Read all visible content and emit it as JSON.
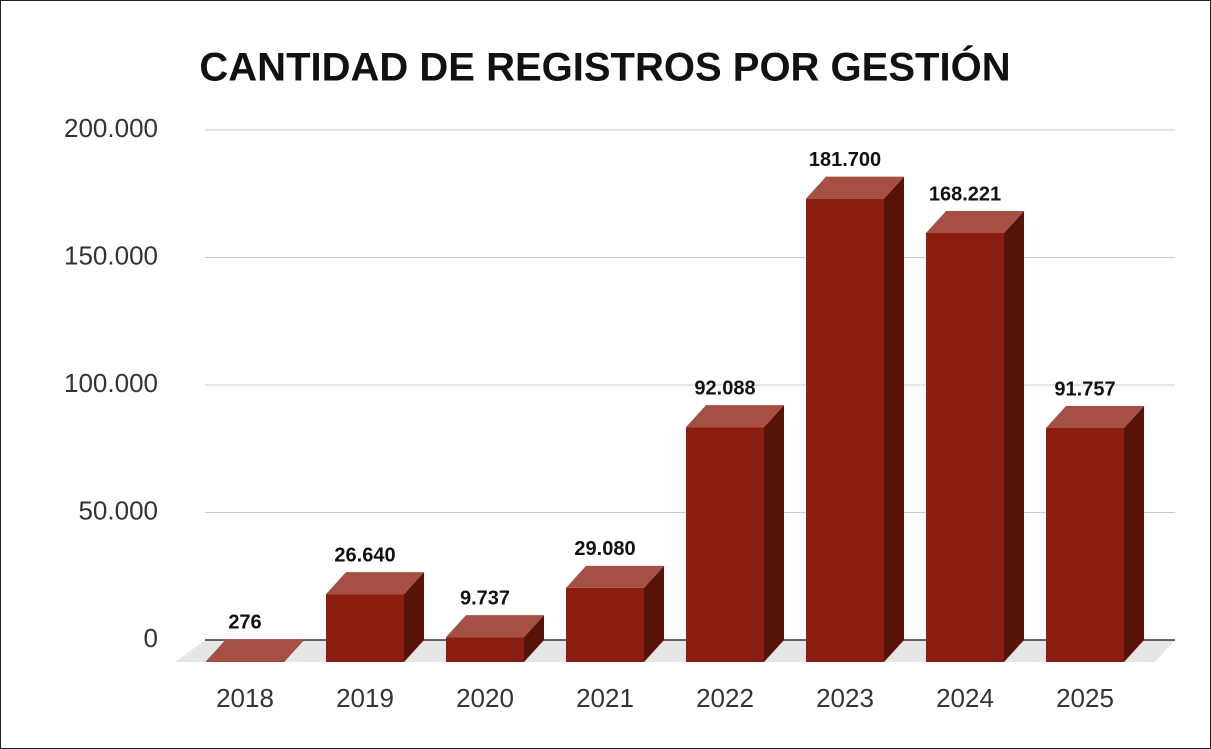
{
  "chart_data": {
    "type": "bar3d",
    "title": "CANTIDAD DE REGISTROS POR GESTIÓN",
    "categories": [
      "2018",
      "2019",
      "2020",
      "2021",
      "2022",
      "2023",
      "2024",
      "2025"
    ],
    "values": [
      276,
      26640,
      9737,
      29080,
      92088,
      181700,
      168221,
      91757
    ],
    "value_labels": [
      "276",
      "26.640",
      "9.737",
      "29.080",
      "92.088",
      "181.700",
      "168.221",
      "91.757"
    ],
    "color": "#8b1e0e",
    "ylim": [
      0,
      200000
    ],
    "yticks": [
      0,
      {
        "value": 50000,
        "label": "50.000"
      },
      {
        "value": 100000,
        "label": "100.000"
      },
      {
        "value": 150000,
        "label": "150.000"
      },
      {
        "value": 200000,
        "label": "200.000"
      }
    ],
    "grid": true
  }
}
